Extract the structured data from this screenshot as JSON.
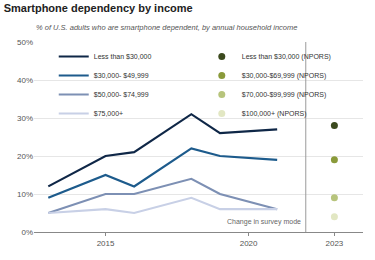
{
  "chart_data": {
    "type": "line",
    "title": "Smartphone dependency by income",
    "subtitle": "% of U.S. adults who are smartphone dependent, by annual household income",
    "x": [
      2013,
      2015,
      2016,
      2018,
      2019,
      2021
    ],
    "series": [
      {
        "name": "Less than $30,000",
        "color": "#0f2747",
        "values": [
          12,
          20,
          21,
          31,
          26,
          27
        ]
      },
      {
        "name": "$30,000- $49,999",
        "color": "#1d5b8c",
        "values": [
          9,
          15,
          12,
          22,
          20,
          19
        ]
      },
      {
        "name": "$50,000- $74,999",
        "color": "#7d90b4",
        "values": [
          5,
          10,
          10,
          14,
          10,
          6
        ]
      },
      {
        "name": "$75,000+",
        "color": "#c8d0e6",
        "values": [
          5,
          6,
          5,
          9,
          6,
          6
        ]
      },
      {
        "name": "Less than $30,000 (NPORS)",
        "color": "#3c4a1e",
        "type": "scatter",
        "marker": "circle",
        "x": [
          2023
        ],
        "values": [
          28
        ]
      },
      {
        "name": "$30,000-$69,999 (NPORS)",
        "color": "#8a9a3a",
        "type": "scatter",
        "marker": "circle",
        "x": [
          2023
        ],
        "values": [
          19
        ]
      },
      {
        "name": "$70,000-$99,999 (NPORS)",
        "color": "#b7c47c",
        "type": "scatter",
        "marker": "circle",
        "x": [
          2023
        ],
        "values": [
          9
        ]
      },
      {
        "name": "$100,000+ (NPORS)",
        "color": "#e2e7c3",
        "type": "scatter",
        "marker": "circle",
        "x": [
          2023
        ],
        "values": [
          4
        ]
      }
    ],
    "annotations": [
      {
        "text": "Change in survey mode",
        "x": 2022
      }
    ],
    "xlim": [
      2012.5,
      2024
    ],
    "xticks": [
      2015,
      2020,
      2023
    ],
    "ylim": [
      0,
      50
    ],
    "yticks": [
      {
        "value": 0,
        "label": "0%"
      },
      {
        "value": 10,
        "label": "10%"
      },
      {
        "value": 20,
        "label": "20%"
      },
      {
        "value": 30,
        "label": "30%"
      },
      {
        "value": 40,
        "label": "40%"
      },
      {
        "value": 50,
        "label": "50%"
      }
    ],
    "grid": true,
    "legend": "top"
  }
}
